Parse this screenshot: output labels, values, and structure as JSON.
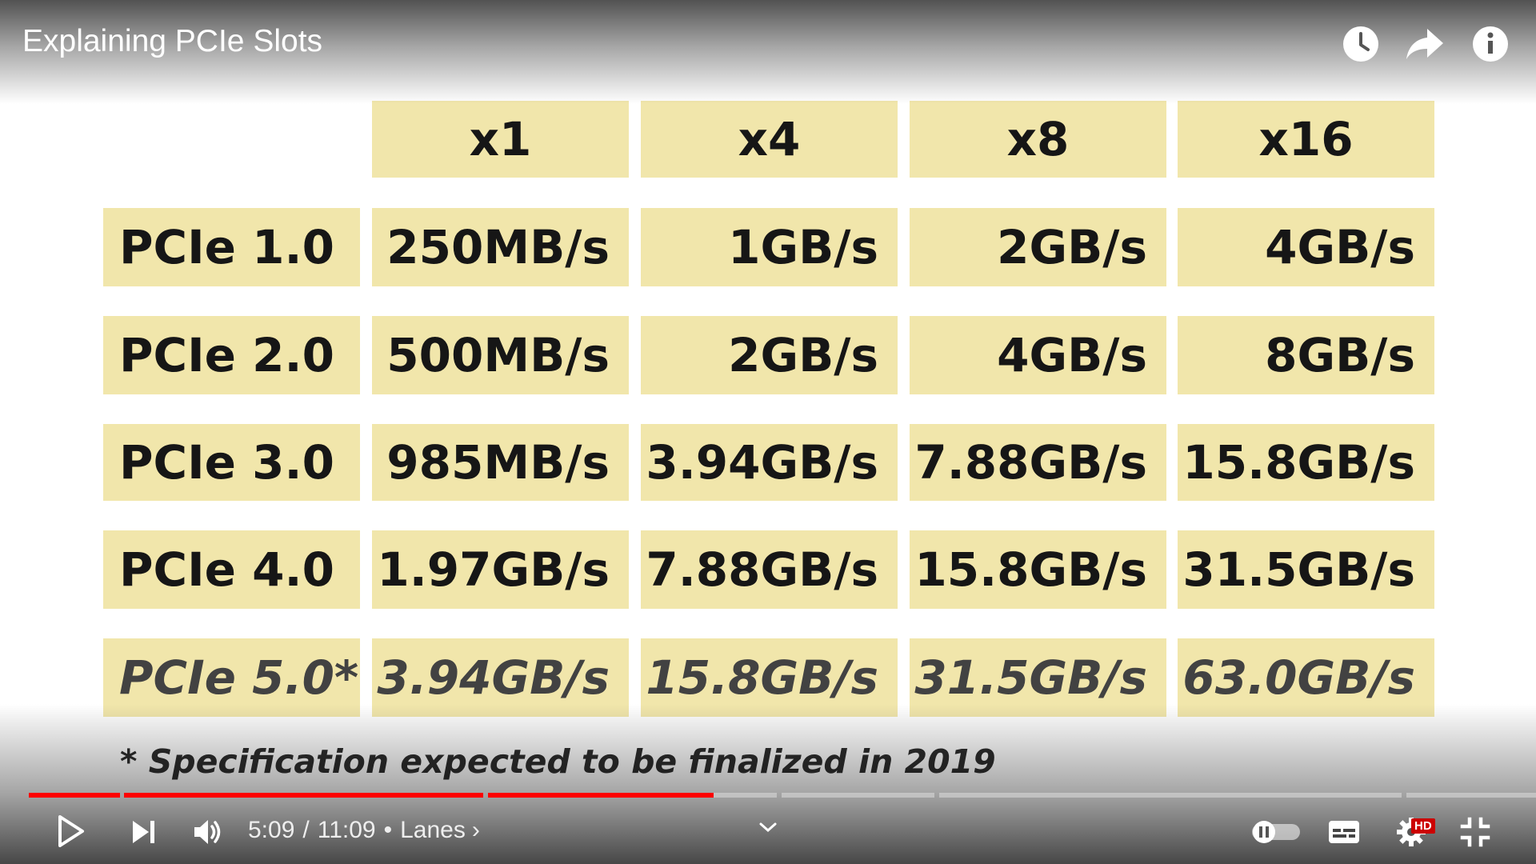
{
  "player": {
    "title": "Explaining PCIe Slots",
    "current_time": "5:09",
    "duration": "11:09",
    "chapter": "Lanes",
    "chapter_chevron": "›",
    "quality_badge": "HD",
    "progress_fraction": 0.464,
    "buffered_fraction": 0.497,
    "accent_color": "#ff0000",
    "icons": {
      "watch_later": "clock-icon",
      "share": "share-icon",
      "info": "info-icon",
      "play": "play-icon",
      "next": "next-icon",
      "volume": "volume-icon",
      "autoplay": "autoplay-toggle",
      "captions": "captions-icon",
      "settings": "gear-icon",
      "exit_fullscreen": "exit-fullscreen-icon",
      "expand": "chevron-down-icon"
    }
  },
  "slide": {
    "column_headers": [
      "x1",
      "x4",
      "x8",
      "x16"
    ],
    "rows": [
      {
        "label": "PCIe 1.0",
        "values": [
          "250MB/s",
          "1GB/s",
          "2GB/s",
          "4GB/s"
        ]
      },
      {
        "label": "PCIe 2.0",
        "values": [
          "500MB/s",
          "2GB/s",
          "4GB/s",
          "8GB/s"
        ]
      },
      {
        "label": "PCIe 3.0",
        "values": [
          "985MB/s",
          "3.94GB/s",
          "7.88GB/s",
          "15.8GB/s"
        ]
      },
      {
        "label": "PCIe 4.0",
        "values": [
          "1.97GB/s",
          "7.88GB/s",
          "15.8GB/s",
          "31.5GB/s"
        ]
      },
      {
        "label": "PCIe 5.0*",
        "values": [
          "3.94GB/s",
          "15.8GB/s",
          "31.5GB/s",
          "63.0GB/s"
        ]
      }
    ],
    "footnote": "* Specification expected to be finalized in 2019",
    "cell_color": "#f1e6ab"
  }
}
